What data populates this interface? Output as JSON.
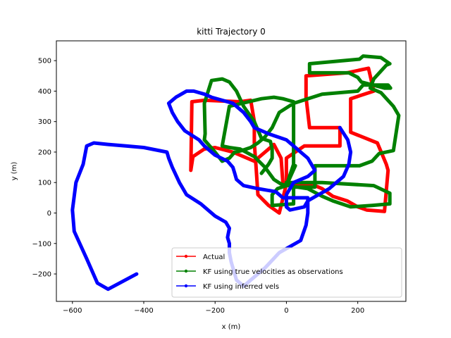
{
  "chart_data": {
    "type": "line",
    "title": "kitti Trajectory 0",
    "xlabel": "x (m)",
    "ylabel": "y (m)",
    "xlim": [
      -645,
      335
    ],
    "ylim": [
      -290,
      565
    ],
    "xticks": [
      -600,
      -400,
      -200,
      0,
      200
    ],
    "yticks": [
      -200,
      -100,
      0,
      100,
      200,
      300,
      400,
      500
    ],
    "xtick_labels": [
      "−600",
      "−400",
      "−200",
      "0",
      "200"
    ],
    "ytick_labels": [
      "−200",
      "−100",
      "0",
      "100",
      "200",
      "300",
      "400",
      "500"
    ],
    "grid": false,
    "legend_position": "lower-center",
    "series": [
      {
        "name": "Actual",
        "color": "#ff0000",
        "x": [
          8,
          0,
          0,
          50,
          150,
          150,
          65,
          55,
          55,
          170,
          230,
          245,
          180,
          180,
          255,
          280,
          285,
          275,
          225,
          200,
          170,
          130,
          100,
          80,
          50,
          20,
          0,
          -10,
          -15,
          -35,
          -60,
          -90,
          -150,
          -200,
          -230,
          -262,
          -268,
          -265,
          -230,
          -130,
          -100,
          -90,
          -90,
          -85,
          -80,
          -50,
          -20,
          0
        ],
        "y": [
          90,
          95,
          180,
          220,
          220,
          280,
          280,
          380,
          450,
          460,
          475,
          400,
          375,
          265,
          230,
          160,
          140,
          5,
          10,
          20,
          40,
          55,
          80,
          90,
          90,
          95,
          95,
          100,
          180,
          225,
          200,
          170,
          200,
          215,
          210,
          185,
          140,
          365,
          370,
          365,
          370,
          300,
          230,
          150,
          60,
          25,
          0,
          95
        ]
      },
      {
        "name": "KF using true velocities as observations",
        "color": "#008000",
        "x": [
          25,
          0,
          0,
          100,
          245,
          290,
          290,
          240,
          180,
          130,
          100,
          60,
          30,
          10,
          0,
          -15,
          -35,
          -60,
          -90,
          -130,
          -160,
          -180,
          -160,
          -70,
          -35,
          -35,
          -10,
          20,
          20,
          20,
          0,
          -25,
          -40,
          -40,
          20,
          20,
          20,
          80,
          80,
          205,
          240,
          260,
          300,
          315,
          300,
          265,
          235,
          245,
          280,
          290,
          265,
          215,
          205,
          65,
          65,
          175,
          200,
          210,
          275,
          292,
          285,
          215,
          200,
          100,
          20,
          -20,
          -40,
          -60,
          -80,
          -100,
          -125,
          -145,
          -160,
          -180,
          -200,
          -230,
          -228,
          -230,
          -210,
          -180,
          -160,
          -140,
          -120,
          -90,
          -70,
          -45,
          -40,
          -40,
          -50,
          -70
        ],
        "y": [
          155,
          90,
          100,
          100,
          90,
          65,
          30,
          25,
          20,
          40,
          55,
          80,
          85,
          90,
          90,
          95,
          110,
          150,
          185,
          210,
          215,
          220,
          350,
          375,
          380,
          380,
          375,
          365,
          245,
          160,
          90,
          80,
          60,
          25,
          30,
          50,
          85,
          85,
          155,
          155,
          170,
          195,
          205,
          320,
          350,
          395,
          410,
          440,
          485,
          490,
          510,
          515,
          505,
          490,
          460,
          460,
          445,
          430,
          410,
          410,
          420,
          420,
          400,
          390,
          360,
          330,
          280,
          250,
          230,
          215,
          205,
          200,
          180,
          170,
          200,
          240,
          260,
          360,
          435,
          440,
          430,
          400,
          350,
          300,
          245,
          235,
          210,
          180,
          160,
          130
        ]
      },
      {
        "name": "KF using inferred vels",
        "color": "#0000ff",
        "x": [
          -420,
          -500,
          -530,
          -560,
          -595,
          -600,
          -590,
          -570,
          -560,
          -540,
          -500,
          -450,
          -400,
          -335,
          -330,
          -320,
          -300,
          -280,
          -240,
          -200,
          -170,
          -160,
          -165,
          -160,
          -160,
          -155,
          -140,
          -120,
          -100,
          -60,
          -20,
          40,
          55,
          60,
          60,
          60,
          0,
          -10,
          -30,
          -80,
          -120,
          -140,
          -145,
          -150,
          -165,
          -200,
          -230,
          -245,
          -285,
          -305,
          -320,
          -330,
          -310,
          -280,
          -260,
          -230,
          -210,
          -150,
          -120,
          -100,
          -90,
          -50,
          0,
          20,
          40,
          60,
          70,
          80,
          60,
          20,
          10,
          0,
          0,
          0,
          10,
          50,
          60,
          90,
          120,
          140,
          160,
          175,
          180,
          172,
          150
        ],
        "y": [
          -200,
          -250,
          -230,
          -150,
          -60,
          10,
          100,
          160,
          220,
          230,
          225,
          220,
          215,
          200,
          180,
          150,
          100,
          60,
          30,
          -10,
          -30,
          -50,
          -80,
          -100,
          -130,
          -160,
          -220,
          -240,
          -220,
          -180,
          -130,
          -90,
          -40,
          0,
          50,
          50,
          50,
          50,
          70,
          80,
          90,
          110,
          130,
          150,
          170,
          190,
          220,
          240,
          270,
          300,
          330,
          360,
          380,
          400,
          400,
          390,
          380,
          360,
          330,
          300,
          280,
          260,
          240,
          220,
          200,
          180,
          160,
          140,
          120,
          100,
          80,
          60,
          40,
          20,
          10,
          20,
          40,
          60,
          80,
          100,
          120,
          160,
          200,
          240,
          280
        ]
      }
    ]
  }
}
